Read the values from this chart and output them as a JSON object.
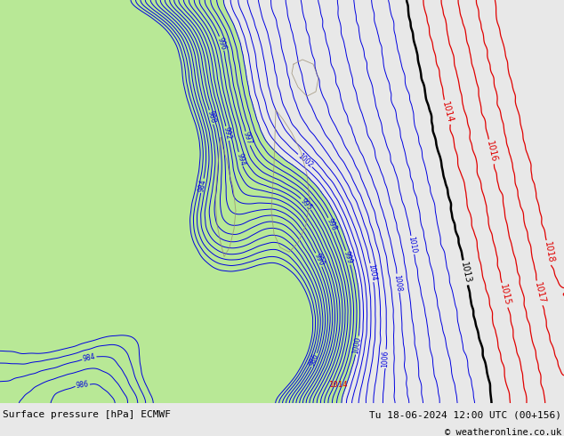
{
  "title_left": "Surface pressure [hPa] ECMWF",
  "title_right": "Tu 18-06-2024 12:00 UTC (00+156)",
  "copyright": "© weatheronline.co.uk",
  "bg_color": "#d0d0d0",
  "green_color": "#b8e896",
  "blue_color": "#0000e0",
  "black_color": "#000000",
  "red_color": "#e00000",
  "bottom_bar_color": "#e8e8e8",
  "text_color": "#000000",
  "figsize": [
    6.34,
    4.9
  ],
  "dpi": 100
}
